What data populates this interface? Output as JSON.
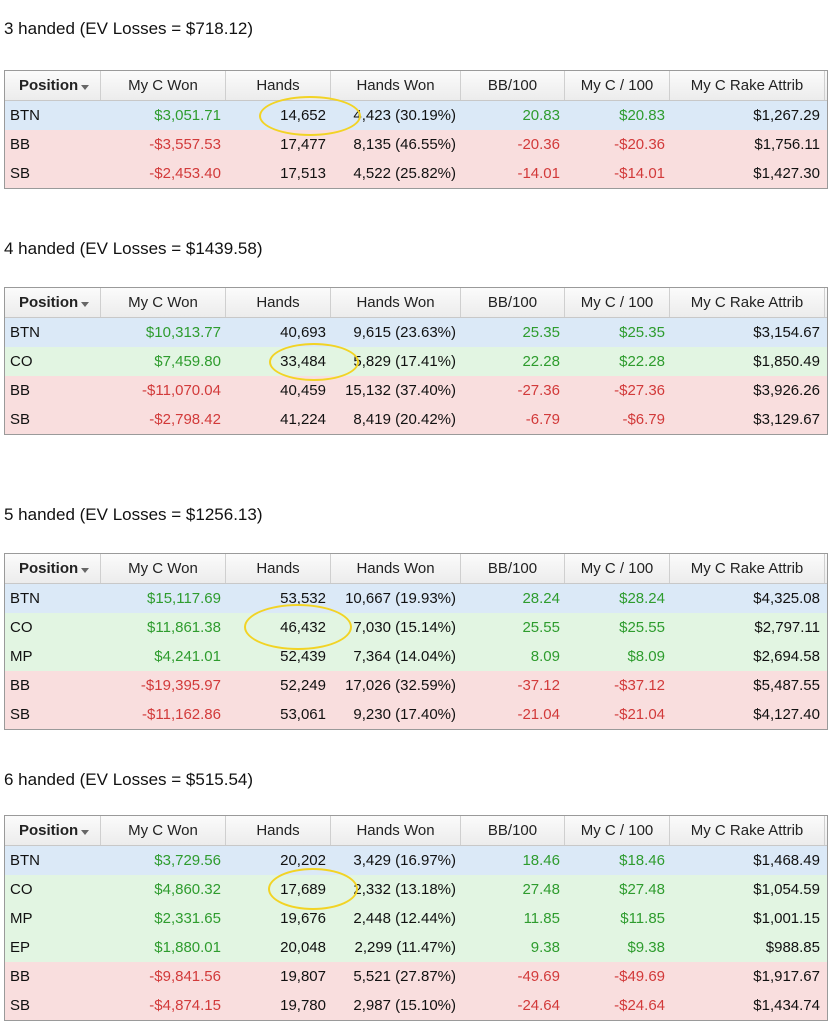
{
  "headers": [
    "Position",
    "My C Won",
    "Hands",
    "Hands Won",
    "BB/100",
    "My C / 100",
    "My C Rake Attrib"
  ],
  "sections": [
    {
      "caption": "3 handed (EV Losses = $718.12)",
      "rows": [
        {
          "pos": "BTN",
          "won": "$3,051.71",
          "hands": "14,652",
          "hands_won": "4,423 (30.19%)",
          "bb100": "20.83",
          "c100": "$20.83",
          "rake": "$1,267.29",
          "tone": "blue",
          "sign": "pos"
        },
        {
          "pos": "BB",
          "won": "-$3,557.53",
          "hands": "17,477",
          "hands_won": "8,135 (46.55%)",
          "bb100": "-20.36",
          "c100": "-$20.36",
          "rake": "$1,756.11",
          "tone": "red",
          "sign": "neg"
        },
        {
          "pos": "SB",
          "won": "-$2,453.40",
          "hands": "17,513",
          "hands_won": "4,522 (25.82%)",
          "bb100": "-14.01",
          "c100": "-$14.01",
          "rake": "$1,427.30",
          "tone": "red",
          "sign": "neg"
        }
      ]
    },
    {
      "caption": "4 handed (EV Losses = $1439.58)",
      "rows": [
        {
          "pos": "BTN",
          "won": "$10,313.77",
          "hands": "40,693",
          "hands_won": "9,615 (23.63%)",
          "bb100": "25.35",
          "c100": "$25.35",
          "rake": "$3,154.67",
          "tone": "blue",
          "sign": "pos"
        },
        {
          "pos": "CO",
          "won": "$7,459.80",
          "hands": "33,484",
          "hands_won": "5,829 (17.41%)",
          "bb100": "22.28",
          "c100": "$22.28",
          "rake": "$1,850.49",
          "tone": "green",
          "sign": "pos"
        },
        {
          "pos": "BB",
          "won": "-$11,070.04",
          "hands": "40,459",
          "hands_won": "15,132 (37.40%)",
          "bb100": "-27.36",
          "c100": "-$27.36",
          "rake": "$3,926.26",
          "tone": "red",
          "sign": "neg"
        },
        {
          "pos": "SB",
          "won": "-$2,798.42",
          "hands": "41,224",
          "hands_won": "8,419 (20.42%)",
          "bb100": "-6.79",
          "c100": "-$6.79",
          "rake": "$3,129.67",
          "tone": "red",
          "sign": "neg"
        }
      ]
    },
    {
      "caption": "5 handed (EV Losses = $1256.13)",
      "rows": [
        {
          "pos": "BTN",
          "won": "$15,117.69",
          "hands": "53,532",
          "hands_won": "10,667 (19.93%)",
          "bb100": "28.24",
          "c100": "$28.24",
          "rake": "$4,325.08",
          "tone": "blue",
          "sign": "pos"
        },
        {
          "pos": "CO",
          "won": "$11,861.38",
          "hands": "46,432",
          "hands_won": "7,030 (15.14%)",
          "bb100": "25.55",
          "c100": "$25.55",
          "rake": "$2,797.11",
          "tone": "green",
          "sign": "pos"
        },
        {
          "pos": "MP",
          "won": "$4,241.01",
          "hands": "52,439",
          "hands_won": "7,364 (14.04%)",
          "bb100": "8.09",
          "c100": "$8.09",
          "rake": "$2,694.58",
          "tone": "green",
          "sign": "pos"
        },
        {
          "pos": "BB",
          "won": "-$19,395.97",
          "hands": "52,249",
          "hands_won": "17,026 (32.59%)",
          "bb100": "-37.12",
          "c100": "-$37.12",
          "rake": "$5,487.55",
          "tone": "red",
          "sign": "neg"
        },
        {
          "pos": "SB",
          "won": "-$11,162.86",
          "hands": "53,061",
          "hands_won": "9,230 (17.40%)",
          "bb100": "-21.04",
          "c100": "-$21.04",
          "rake": "$4,127.40",
          "tone": "red",
          "sign": "neg"
        }
      ]
    },
    {
      "caption": "6 handed (EV Losses = $515.54)",
      "rows": [
        {
          "pos": "BTN",
          "won": "$3,729.56",
          "hands": "20,202",
          "hands_won": "3,429 (16.97%)",
          "bb100": "18.46",
          "c100": "$18.46",
          "rake": "$1,468.49",
          "tone": "blue",
          "sign": "pos"
        },
        {
          "pos": "CO",
          "won": "$4,860.32",
          "hands": "17,689",
          "hands_won": "2,332 (13.18%)",
          "bb100": "27.48",
          "c100": "$27.48",
          "rake": "$1,054.59",
          "tone": "green",
          "sign": "pos"
        },
        {
          "pos": "MP",
          "won": "$2,331.65",
          "hands": "19,676",
          "hands_won": "2,448 (12.44%)",
          "bb100": "11.85",
          "c100": "$11.85",
          "rake": "$1,001.15",
          "tone": "green",
          "sign": "pos"
        },
        {
          "pos": "EP",
          "won": "$1,880.01",
          "hands": "20,048",
          "hands_won": "2,299 (11.47%)",
          "bb100": "9.38",
          "c100": "$9.38",
          "rake": "$988.85",
          "tone": "green",
          "sign": "pos"
        },
        {
          "pos": "BB",
          "won": "-$9,841.56",
          "hands": "19,807",
          "hands_won": "5,521 (27.87%)",
          "bb100": "-49.69",
          "c100": "-$49.69",
          "rake": "$1,917.67",
          "tone": "red",
          "sign": "neg"
        },
        {
          "pos": "SB",
          "won": "-$4,874.15",
          "hands": "19,780",
          "hands_won": "2,987 (15.10%)",
          "bb100": "-24.64",
          "c100": "-$24.64",
          "rake": "$1,434.74",
          "tone": "red",
          "sign": "neg"
        }
      ]
    }
  ],
  "colors": {
    "positive": "#2e9c2e",
    "negative": "#d23a3a",
    "btn_row": "#dbe9f7",
    "pos_row": "#e2f5e2",
    "neg_row": "#f9dede",
    "highlight": "#f2d324"
  }
}
